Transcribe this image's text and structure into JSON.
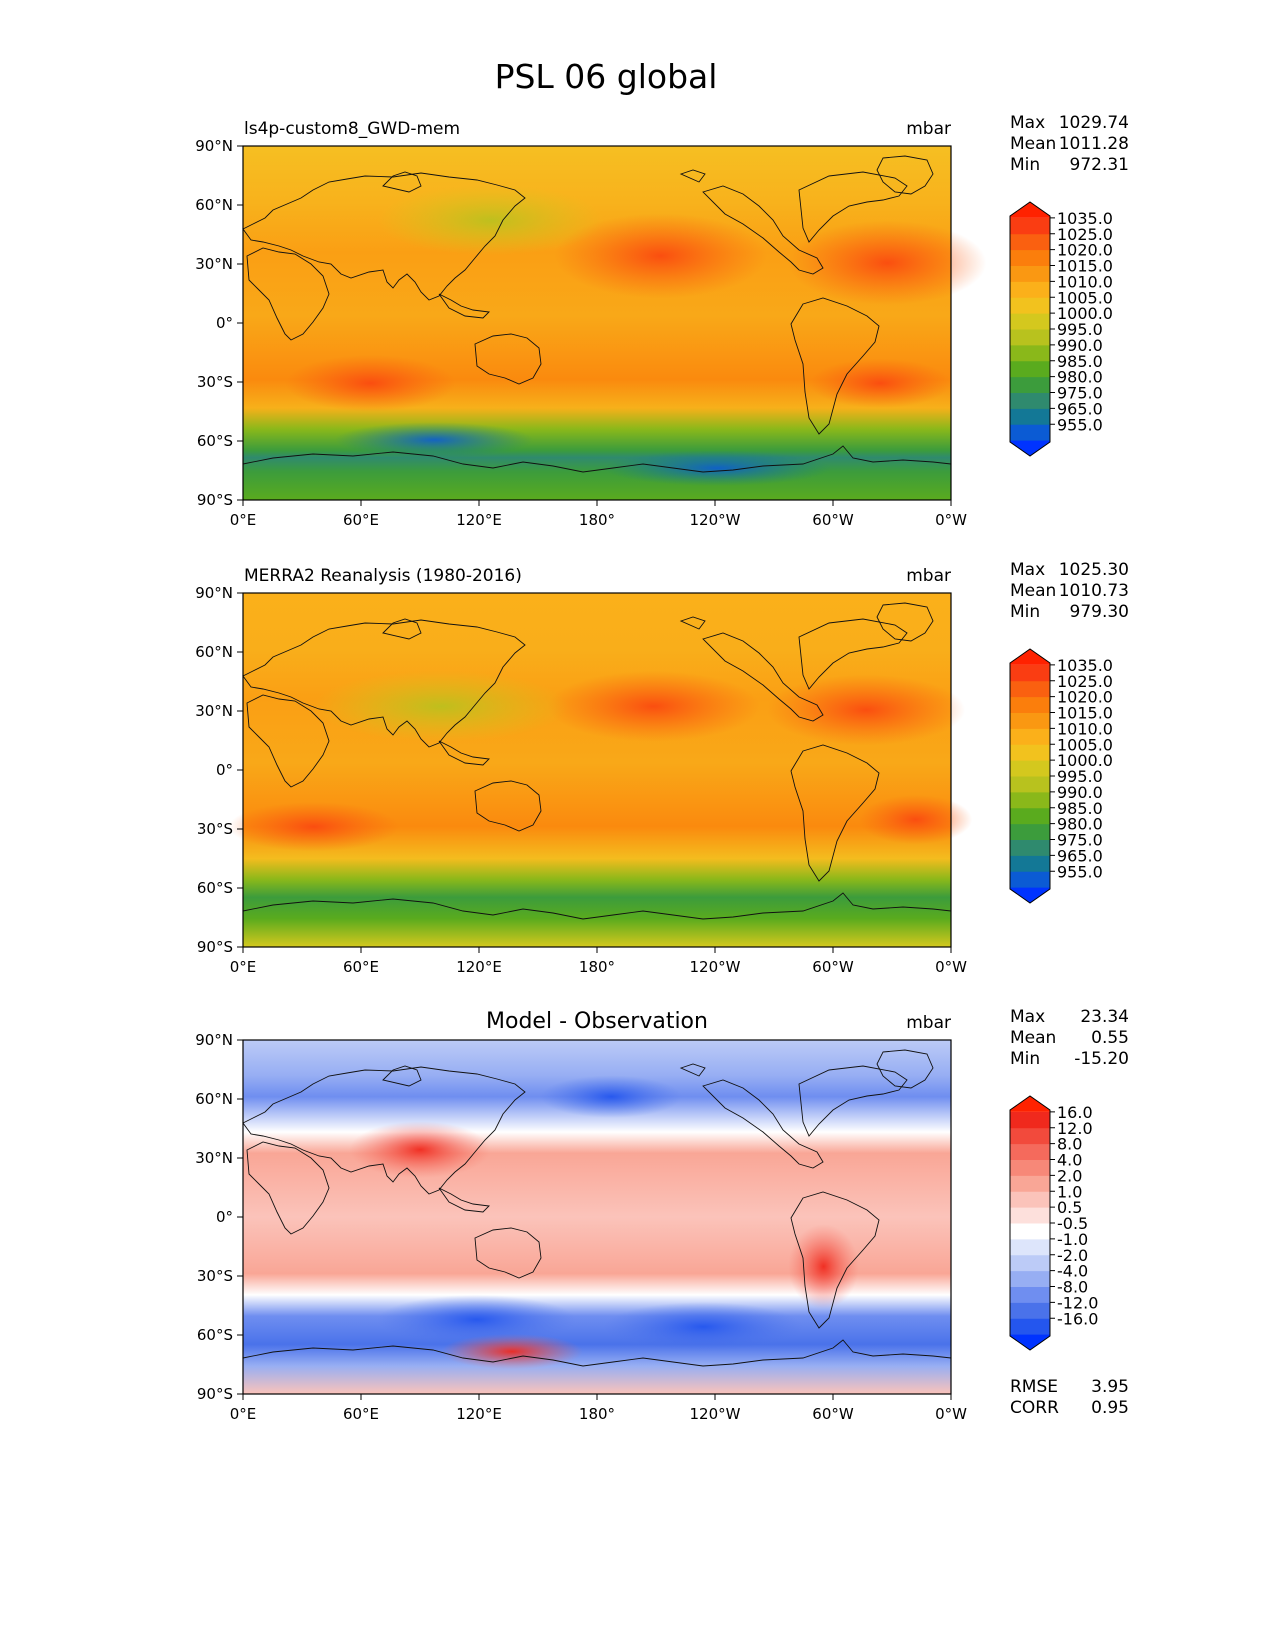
{
  "title": "PSL 06 global",
  "lat_labels": [
    "90°N",
    "60°N",
    "30°N",
    "0°",
    "30°S",
    "60°S",
    "90°S"
  ],
  "lon_labels": [
    "0°E",
    "60°E",
    "120°E",
    "180°",
    "120°W",
    "60°W",
    "0°W"
  ],
  "colors": {
    "psl_scale": [
      "#0033ff",
      "#0b5bd4",
      "#137896",
      "#2f8a6e",
      "#3c9c3c",
      "#5aab1e",
      "#8ab81a",
      "#b8c21e",
      "#d4c81e",
      "#f2c21e",
      "#fbb01a",
      "#fa9812",
      "#fb7e0c",
      "#fa6010",
      "#fa3d12",
      "#ff2200"
    ],
    "diff_scale": [
      "#0033ff",
      "#2456ee",
      "#4a72ea",
      "#6f8ef0",
      "#97aef3",
      "#bccbf7",
      "#dde5fb",
      "#ffffff",
      "#fde0dc",
      "#fbc3ba",
      "#f9a696",
      "#f78878",
      "#f56a5c",
      "#f24a3c",
      "#f0291d",
      "#ff2200"
    ]
  },
  "panels": [
    {
      "id": "model",
      "left_title": "ls4p-custom8_GWD-mem",
      "center_title": "",
      "units": "mbar",
      "stats": [
        {
          "label": "Max",
          "value": "1029.74"
        },
        {
          "label": "Mean",
          "value": "1011.28"
        },
        {
          "label": "Min",
          "value": "972.31"
        }
      ],
      "colorbar_ticks": [
        "1035.0",
        "1025.0",
        "1020.0",
        "1015.0",
        "1010.0",
        "1005.0",
        "1000.0",
        "995.0",
        "990.0",
        "985.0",
        "980.0",
        "975.0",
        "965.0",
        "955.0"
      ],
      "footer": []
    },
    {
      "id": "obs",
      "left_title": "MERRA2 Reanalysis (1980-2016)",
      "center_title": "",
      "units": "mbar",
      "stats": [
        {
          "label": "Max",
          "value": "1025.30"
        },
        {
          "label": "Mean",
          "value": "1010.73"
        },
        {
          "label": "Min",
          "value": "979.30"
        }
      ],
      "colorbar_ticks": [
        "1035.0",
        "1025.0",
        "1020.0",
        "1015.0",
        "1010.0",
        "1005.0",
        "1000.0",
        "995.0",
        "990.0",
        "985.0",
        "980.0",
        "975.0",
        "965.0",
        "955.0"
      ],
      "footer": []
    },
    {
      "id": "diff",
      "left_title": "",
      "center_title": "Model - Observation",
      "units": "mbar",
      "stats": [
        {
          "label": "Max",
          "value": "23.34"
        },
        {
          "label": "Mean",
          "value": "0.55"
        },
        {
          "label": "Min",
          "value": "-15.20"
        }
      ],
      "colorbar_ticks": [
        "16.0",
        "12.0",
        "8.0",
        "4.0",
        "2.0",
        "1.0",
        "0.5",
        "-0.5",
        "-1.0",
        "-2.0",
        "-4.0",
        "-8.0",
        "-12.0",
        "-16.0"
      ],
      "footer": [
        {
          "label": "RMSE",
          "value": "3.95"
        },
        {
          "label": "CORR",
          "value": "0.95"
        }
      ]
    }
  ]
}
